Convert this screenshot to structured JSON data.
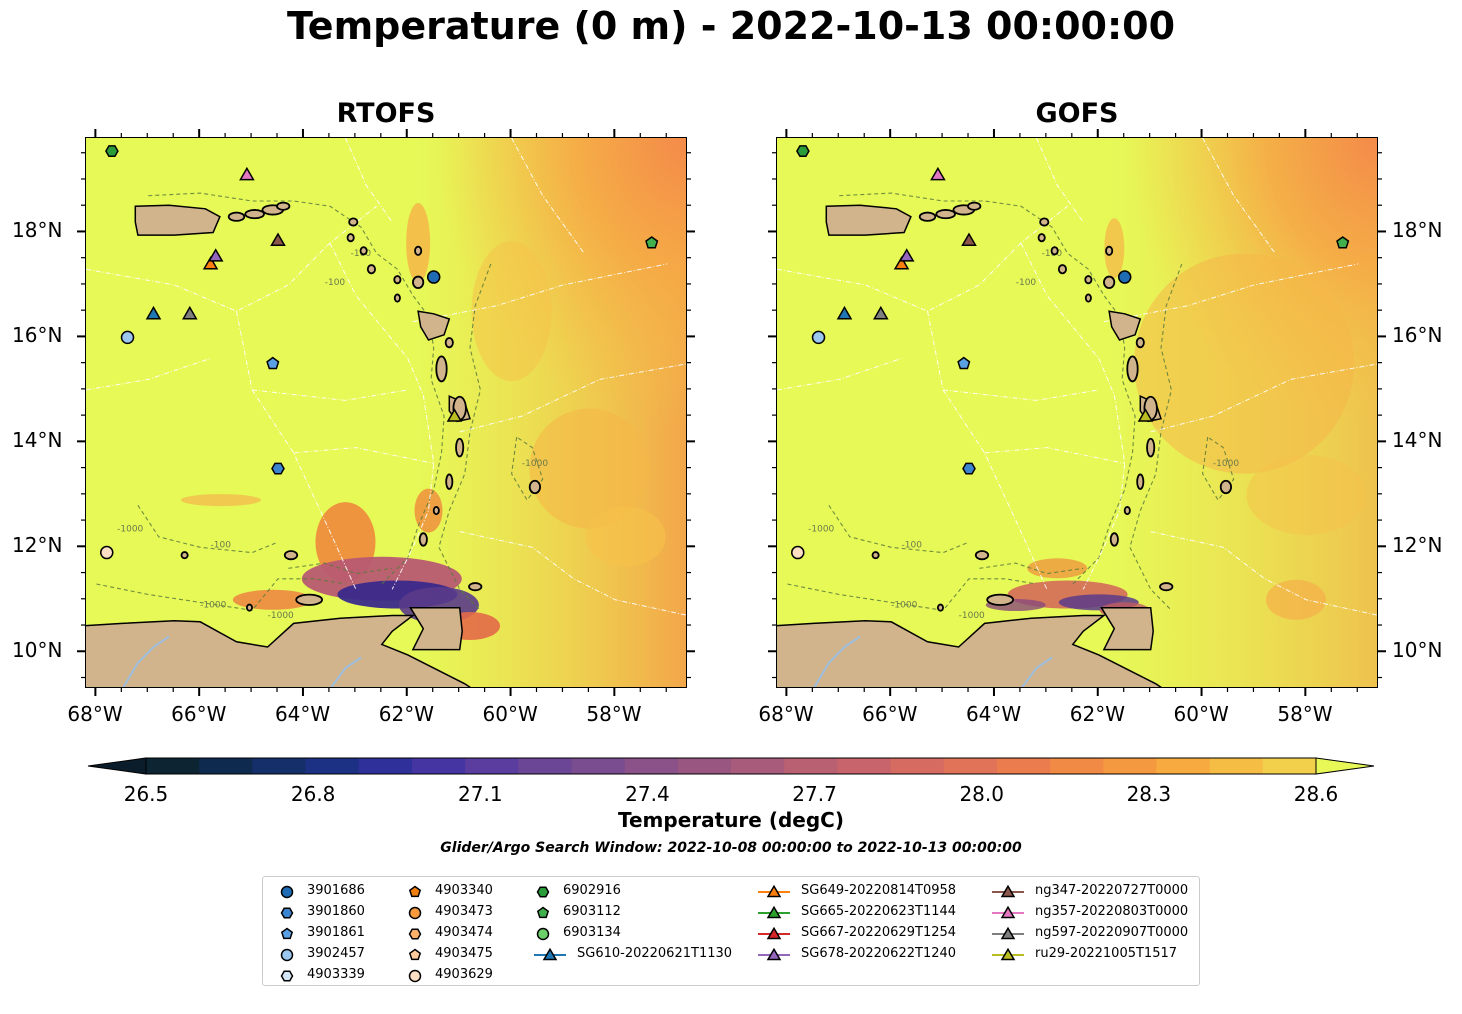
{
  "title": "Temperature (0 m) - 2022-10-13 00:00:00",
  "panels": [
    {
      "title": "RTOFS",
      "variant": "rtofs"
    },
    {
      "title": "GOFS",
      "variant": "gofs"
    }
  ],
  "axes": {
    "lon_range": [
      -68.2,
      -56.6
    ],
    "lat_range": [
      9.3,
      19.8
    ],
    "lon_ticks": [
      "68°W",
      "66°W",
      "64°W",
      "62°W",
      "60°W",
      "58°W"
    ],
    "lon_tick_values": [
      -68,
      -66,
      -64,
      -62,
      -60,
      -58
    ],
    "lat_ticks": [
      "10°N",
      "12°N",
      "14°N",
      "16°N",
      "18°N"
    ],
    "lat_tick_values": [
      10,
      12,
      14,
      16,
      18
    ]
  },
  "contour_labels": [
    "-100",
    "-1000"
  ],
  "colorbar": {
    "label": "Temperature (degC)",
    "min": 26.5,
    "max": 28.6,
    "step": 0.1,
    "ticks": [
      "26.5",
      "26.8",
      "27.1",
      "27.4",
      "27.7",
      "28.0",
      "28.3",
      "28.6"
    ],
    "extend": "both"
  },
  "search_window": "Glider/Argo Search Window: 2022-10-08 00:00:00 to 2022-10-13 00:00:00",
  "legend": [
    {
      "label": "3901686",
      "marker": "circle",
      "color": "#1f6cb4",
      "lon": -61.5,
      "lat": 17.15
    },
    {
      "label": "3901860",
      "marker": "hexagon",
      "color": "#3b84cf",
      "lon": -64.5,
      "lat": 13.5
    },
    {
      "label": "3901861",
      "marker": "pentagon",
      "color": "#5aa0e4",
      "lon": -64.6,
      "lat": 15.5
    },
    {
      "label": "3902457",
      "marker": "circle",
      "color": "#9cc8ef",
      "lon": -67.4,
      "lat": 16.0
    },
    {
      "label": "4903339",
      "marker": "hexagon",
      "color": "#d3e6f7",
      "lon": null,
      "lat": null
    },
    {
      "label": "4903340",
      "marker": "pentagon",
      "color": "#f07f0f",
      "lon": null,
      "lat": null
    },
    {
      "label": "4903473",
      "marker": "circle",
      "color": "#f79a3e",
      "lon": null,
      "lat": null
    },
    {
      "label": "4903474",
      "marker": "hexagon",
      "color": "#fab06b",
      "lon": null,
      "lat": null
    },
    {
      "label": "4903475",
      "marker": "pentagon",
      "color": "#fcca9b",
      "lon": null,
      "lat": null
    },
    {
      "label": "4903629",
      "marker": "circle",
      "color": "#fde0c4",
      "lon": -67.8,
      "lat": 11.9
    },
    {
      "label": "6902916",
      "marker": "hexagon",
      "color": "#2a9d3a",
      "lon": -67.7,
      "lat": 19.55
    },
    {
      "label": "6903112",
      "marker": "pentagon",
      "color": "#41b04c",
      "lon": -57.3,
      "lat": 17.8
    },
    {
      "label": "6903134",
      "marker": "circle",
      "color": "#6ccf6a",
      "lon": null,
      "lat": null
    },
    {
      "label": "SG610-20220621T1130",
      "marker": "triangle",
      "color": "#1f77b4",
      "lon": -66.9,
      "lat": 16.45
    },
    {
      "label": "SG649-20220814T0958",
      "marker": "triangle",
      "color": "#ff7f0e",
      "lon": -65.8,
      "lat": 17.4
    },
    {
      "label": "SG665-20220623T1144",
      "marker": "triangle",
      "color": "#2ca02c",
      "lon": null,
      "lat": null
    },
    {
      "label": "SG667-20220629T1254",
      "marker": "triangle",
      "color": "#d62728",
      "lon": null,
      "lat": null
    },
    {
      "label": "SG678-20220622T1240",
      "marker": "triangle",
      "color": "#9467bd",
      "lon": -65.7,
      "lat": 17.55
    },
    {
      "label": "ng347-20220727T0000",
      "marker": "triangle",
      "color": "#8c564b",
      "lon": -64.5,
      "lat": 17.85
    },
    {
      "label": "ng357-20220803T0000",
      "marker": "triangle",
      "color": "#e377c2",
      "lon": -65.1,
      "lat": 19.1
    },
    {
      "label": "ng597-20220907T0000",
      "marker": "triangle",
      "color": "#7f7f7f",
      "lon": -66.2,
      "lat": 16.45
    },
    {
      "label": "ru29-20221005T1517",
      "marker": "triangle",
      "color": "#bcbd22",
      "lon": -61.1,
      "lat": 14.5
    }
  ],
  "colors": {
    "land": "#d2b48c",
    "lake": "#9fbfdf"
  }
}
